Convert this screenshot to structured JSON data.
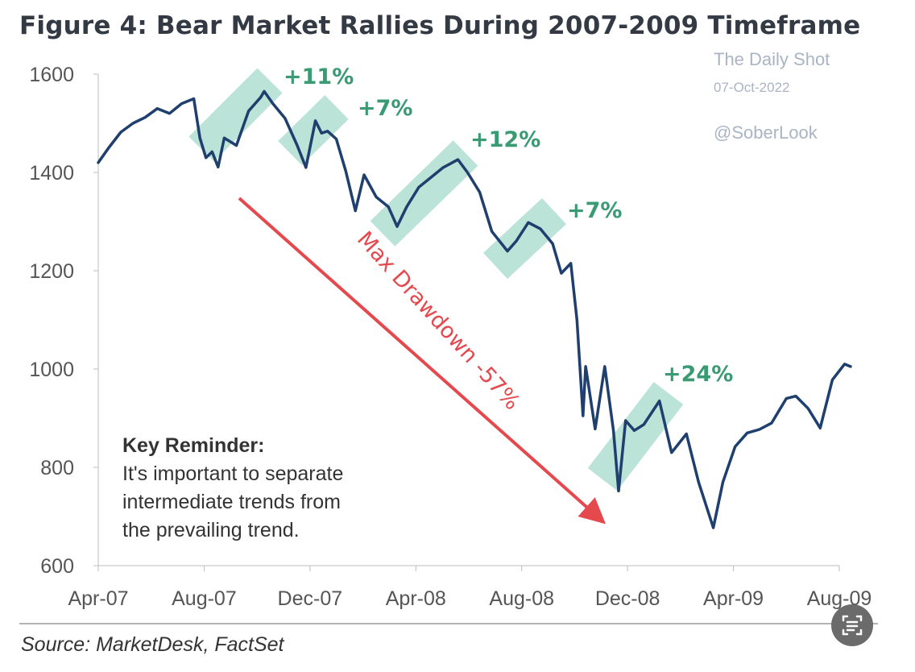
{
  "chart_data": {
    "type": "line",
    "title": "Figure 4: Bear Market Rallies During 2007-2009 Timeframe",
    "x_ticks": [
      "Apr-07",
      "Aug-07",
      "Dec-07",
      "Apr-08",
      "Aug-08",
      "Dec-08",
      "Apr-09",
      "Aug-09"
    ],
    "y_ticks": [
      1600,
      1400,
      1200,
      1000,
      800,
      600
    ],
    "ylim": [
      600,
      1600
    ],
    "xlim": [
      "2007-04-01",
      "2009-08-01"
    ],
    "grid": false,
    "line_color": "#1f3f6e",
    "rally_band_color": "#8fd1bd",
    "rally_label_color": "#3a9a74",
    "drawdown_color": "#e5484d",
    "series": [
      {
        "x": [
          "2007-04-01",
          "2007-04-13",
          "2007-04-27",
          "2007-05-11",
          "2007-05-25",
          "2007-06-08",
          "2007-06-22",
          "2007-07-06",
          "2007-07-20",
          "2007-07-27",
          "2007-08-03",
          "2007-08-10",
          "2007-08-17",
          "2007-08-24",
          "2007-09-07",
          "2007-09-21",
          "2007-10-05",
          "2007-10-09",
          "2007-10-19",
          "2007-11-02",
          "2007-11-16",
          "2007-11-26",
          "2007-12-07",
          "2007-12-14",
          "2007-12-21",
          "2007-12-31",
          "2008-01-11",
          "2008-01-22",
          "2008-02-01",
          "2008-02-15",
          "2008-02-29",
          "2008-03-10",
          "2008-03-21",
          "2008-04-04",
          "2008-04-18",
          "2008-05-02",
          "2008-05-19",
          "2008-05-30",
          "2008-06-13",
          "2008-06-27",
          "2008-07-15",
          "2008-07-25",
          "2008-08-08",
          "2008-08-22",
          "2008-09-05",
          "2008-09-15",
          "2008-09-26",
          "2008-10-03",
          "2008-10-10",
          "2008-10-13",
          "2008-10-24",
          "2008-11-04",
          "2008-11-14",
          "2008-11-20",
          "2008-11-28",
          "2008-12-08",
          "2008-12-19",
          "2009-01-06",
          "2009-01-20",
          "2009-02-06",
          "2009-02-20",
          "2009-03-09",
          "2009-03-20",
          "2009-04-03",
          "2009-04-17",
          "2009-05-01",
          "2009-05-15",
          "2009-06-01",
          "2009-06-12",
          "2009-06-26",
          "2009-07-10",
          "2009-07-24",
          "2009-08-07",
          "2009-08-14"
        ],
        "values": [
          1420,
          1450,
          1482,
          1500,
          1512,
          1530,
          1520,
          1540,
          1550,
          1470,
          1430,
          1442,
          1411,
          1470,
          1455,
          1525,
          1553,
          1565,
          1540,
          1510,
          1455,
          1410,
          1505,
          1480,
          1484,
          1468,
          1402,
          1322,
          1395,
          1350,
          1330,
          1290,
          1330,
          1370,
          1390,
          1410,
          1426,
          1400,
          1360,
          1280,
          1240,
          1260,
          1298,
          1285,
          1255,
          1195,
          1215,
          1100,
          905,
          1005,
          878,
          1005,
          875,
          752,
          895,
          875,
          887,
          935,
          830,
          868,
          770,
          677,
          770,
          842,
          870,
          877,
          890,
          940,
          945,
          920,
          880,
          978,
          1010,
          1005
        ]
      }
    ],
    "rallies": [
      {
        "label": "+11%"
      },
      {
        "label": "+7%"
      },
      {
        "label": "+12%"
      },
      {
        "label": "+7%"
      },
      {
        "label": "+24%"
      }
    ],
    "drawdown_label": "Max Drawdown -57%"
  },
  "watermark": {
    "publisher": "The Daily Shot",
    "date": "07-Oct-2022",
    "handle": "@SoberLook"
  },
  "key_reminder": {
    "title": "Key Reminder:",
    "lines": [
      "It's important to separate",
      "intermediate trends from",
      "the prevailing trend."
    ]
  },
  "source": "Source: MarketDesk, FactSet",
  "icons": {
    "scan": "scan-text-icon"
  }
}
